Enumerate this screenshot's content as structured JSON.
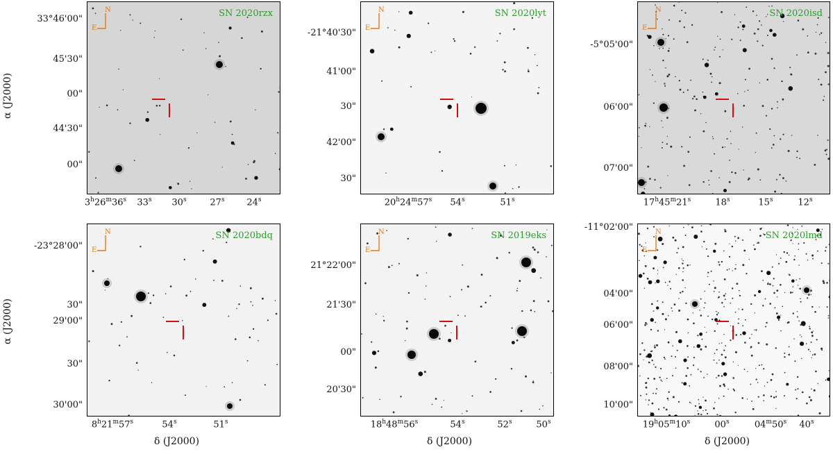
{
  "colors": {
    "label": "#2e9a2e",
    "compass": "#e07b16",
    "marker": "#d01010"
  },
  "compass": {
    "north": "N",
    "east": "E"
  },
  "axis": {
    "ylabel": "α (J2000)",
    "xlabel": "δ (J2000)"
  },
  "panels": [
    {
      "name": "SN 2020rzx",
      "bg": "#d6d6d6",
      "yticks": [
        "33°46'00\"",
        "45'30\"",
        "00\"",
        "44'30\"",
        "00\""
      ],
      "xticks": [
        [
          "3",
          "h",
          "26",
          "m",
          "36",
          "s"
        ],
        [
          "33",
          "s"
        ],
        [
          "30",
          "s"
        ],
        [
          "27",
          "s"
        ],
        [
          "24",
          "s"
        ]
      ]
    },
    {
      "name": "SN 2020lyt",
      "bg": "#f4f4f4",
      "yticks": [
        "-21°40'30\"",
        "41'00\"",
        "30\"",
        "42'00\"",
        "30\""
      ],
      "xticks": [
        [
          "20",
          "h",
          "24",
          "m",
          "57",
          "s"
        ],
        [
          "54",
          "s"
        ],
        [
          "51",
          "s"
        ]
      ]
    },
    {
      "name": "SN 2020isd",
      "bg": "#d9d9d9",
      "yticks": [
        "-5°05'00\"",
        "06'00\"",
        "07'00\""
      ],
      "xticks": [
        [
          "17",
          "h",
          "45",
          "m",
          "21",
          "s"
        ],
        [
          "18",
          "s"
        ],
        [
          "15",
          "s"
        ],
        [
          "12",
          "s"
        ]
      ]
    },
    {
      "name": "SN 2020bdq",
      "bg": "#f2f2f2",
      "yticks": [
        "-23°28'00\"",
        "30\"",
        "29'00\"",
        "30\"",
        "30'00\""
      ],
      "xticks": [
        [
          "8",
          "h",
          "21",
          "m",
          "57",
          "s"
        ],
        [
          "54",
          "s"
        ],
        [
          "51",
          "s"
        ]
      ]
    },
    {
      "name": "SN 2019eks",
      "bg": "#f3f3f3",
      "yticks": [
        "21°22'00\"",
        "21'30\"",
        "00\"",
        "20'30\""
      ],
      "xticks": [
        [
          "18",
          "h",
          "48",
          "m",
          "56",
          "s"
        ],
        [
          "54",
          "s"
        ],
        [
          "52",
          "s"
        ],
        [
          "50",
          "s"
        ]
      ]
    },
    {
      "name": "SN 2020lmd",
      "bg": "#f8f8f8",
      "yticks": [
        "-11°02'00\"",
        "04'00\"",
        "06'00\"",
        "08'00\"",
        "10'00\""
      ],
      "xticks": [
        [
          "19",
          "h",
          "05",
          "m",
          "10",
          "s"
        ],
        [
          "00",
          "s"
        ],
        [
          "04",
          "m",
          "50",
          "s"
        ],
        [
          "40",
          "s"
        ]
      ]
    }
  ]
}
